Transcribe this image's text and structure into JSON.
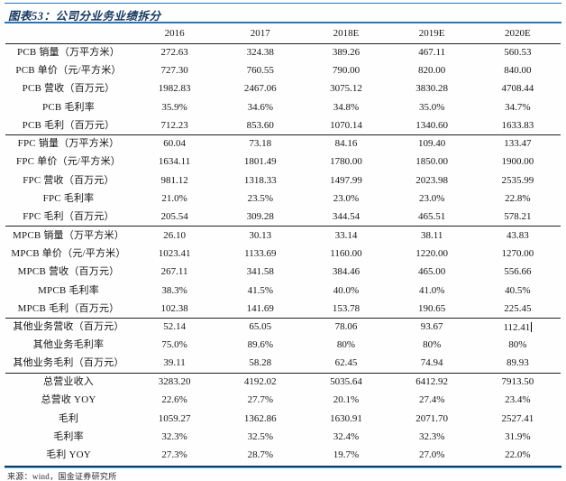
{
  "title": "图表53：公司分业务业绩拆分",
  "footer": "来源：wind，国金证券研究所",
  "colors": {
    "accent_blue": "#2e75b6",
    "navy": "#17375d",
    "line_black": "#1f1f1f",
    "light_blue": "#5bc8f0"
  },
  "text_cursor": {
    "section": 3,
    "row": 0,
    "col": 4
  },
  "table": {
    "corner_label": "",
    "columns": [
      "2016",
      "2017",
      "2018E",
      "2019E",
      "2020E"
    ],
    "sections": [
      {
        "name": "pcb-section",
        "rows": [
          {
            "label": "PCB 销量（万平方米）",
            "values": [
              "272.63",
              "324.38",
              "389.26",
              "467.11",
              "560.53"
            ]
          },
          {
            "label": "PCB 单价（元/平方米）",
            "values": [
              "727.30",
              "760.55",
              "790.00",
              "820.00",
              "840.00"
            ]
          },
          {
            "label": "PCB 营收（百万元）",
            "values": [
              "1982.83",
              "2467.06",
              "3075.12",
              "3830.28",
              "4708.44"
            ]
          },
          {
            "label": "PCB 毛利率",
            "values": [
              "35.9%",
              "34.6%",
              "34.8%",
              "35.0%",
              "34.7%"
            ]
          },
          {
            "label": "PCB 毛利（百万元）",
            "values": [
              "712.23",
              "853.60",
              "1070.14",
              "1340.60",
              "1633.83"
            ]
          }
        ]
      },
      {
        "name": "fpc-section",
        "rows": [
          {
            "label": "FPC 销量（万平方米）",
            "values": [
              "60.04",
              "73.18",
              "84.16",
              "109.40",
              "133.47"
            ]
          },
          {
            "label": "FPC 单价（元/平方米）",
            "values": [
              "1634.11",
              "1801.49",
              "1780.00",
              "1850.00",
              "1900.00"
            ]
          },
          {
            "label": "FPC 营收（百万元）",
            "values": [
              "981.12",
              "1318.33",
              "1497.99",
              "2023.98",
              "2535.99"
            ]
          },
          {
            "label": "FPC 毛利率",
            "values": [
              "21.0%",
              "23.5%",
              "23.0%",
              "23.0%",
              "22.8%"
            ]
          },
          {
            "label": "FPC 毛利（百万元）",
            "values": [
              "205.54",
              "309.28",
              "344.54",
              "465.51",
              "578.21"
            ]
          }
        ]
      },
      {
        "name": "mpcb-section",
        "rows": [
          {
            "label": "MPCB 销量（万平方米）",
            "values": [
              "26.10",
              "30.13",
              "33.14",
              "38.11",
              "43.83"
            ]
          },
          {
            "label": "MPCB 单价（元/平方米）",
            "values": [
              "1023.41",
              "1133.69",
              "1160.00",
              "1220.00",
              "1270.00"
            ]
          },
          {
            "label": "MPCB 营收（百万元）",
            "values": [
              "267.11",
              "341.58",
              "384.46",
              "465.00",
              "556.66"
            ]
          },
          {
            "label": "MPCB 毛利率",
            "values": [
              "38.3%",
              "41.5%",
              "40.0%",
              "41.0%",
              "40.5%"
            ]
          },
          {
            "label": "MPCB 毛利（百万元）",
            "values": [
              "102.38",
              "141.69",
              "153.78",
              "190.65",
              "225.45"
            ]
          }
        ]
      },
      {
        "name": "other-business-section",
        "rows": [
          {
            "label": "其他业务营收（百万元）",
            "values": [
              "52.14",
              "65.05",
              "78.06",
              "93.67",
              "112.41"
            ]
          },
          {
            "label": "其他业务毛利率",
            "values": [
              "75.0%",
              "89.6%",
              "80%",
              "80%",
              "80%"
            ]
          },
          {
            "label": "其他业务毛利（百万元）",
            "values": [
              "39.11",
              "58.28",
              "62.45",
              "74.94",
              "89.93"
            ]
          }
        ]
      },
      {
        "name": "total-section",
        "rows": [
          {
            "label": "总营业收入",
            "values": [
              "3283.20",
              "4192.02",
              "5035.64",
              "6412.92",
              "7913.50"
            ]
          },
          {
            "label": "总营收 YOY",
            "values": [
              "22.6%",
              "27.7%",
              "20.1%",
              "27.4%",
              "23.4%"
            ]
          },
          {
            "label": "毛利",
            "values": [
              "1059.27",
              "1362.86",
              "1630.91",
              "2071.70",
              "2527.41"
            ]
          },
          {
            "label": "毛利率",
            "values": [
              "32.3%",
              "32.5%",
              "32.4%",
              "32.3%",
              "31.9%"
            ]
          },
          {
            "label": "毛利 YOY",
            "values": [
              "27.3%",
              "28.7%",
              "19.7%",
              "27.0%",
              "22.0%"
            ]
          }
        ]
      }
    ]
  }
}
